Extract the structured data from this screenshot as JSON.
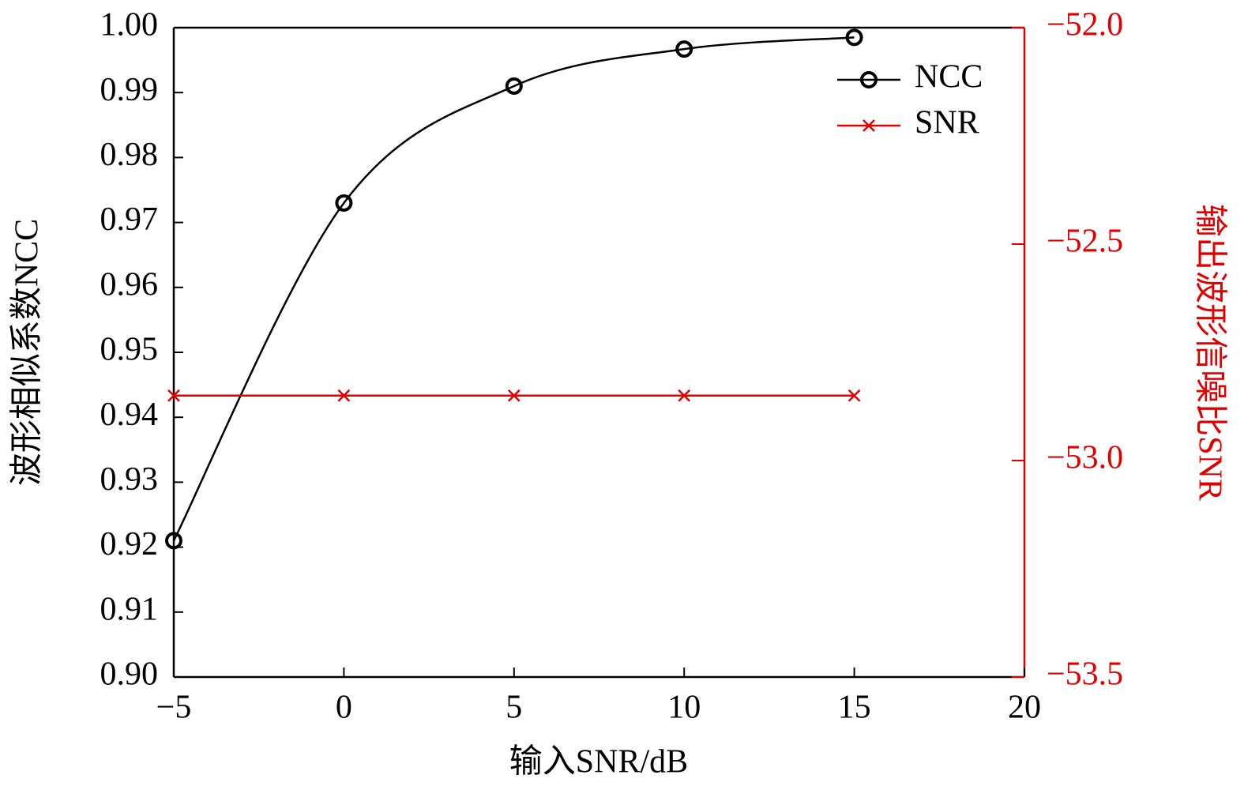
{
  "chart_data": {
    "type": "line",
    "x": [
      -5,
      0,
      5,
      10,
      15
    ],
    "series": [
      {
        "name": "NCC",
        "color": "#000000",
        "marker": "circle",
        "values": [
          0.921,
          0.973,
          0.991,
          0.9967,
          0.9985
        ]
      },
      {
        "name": "SNR",
        "color": "#e00000",
        "marker": "x",
        "axis": "y2",
        "values": [
          -52.85,
          -52.85,
          -52.85,
          -52.85,
          -52.85
        ]
      }
    ],
    "xlabel": "输入SNR/dB",
    "ylabel": "波形相似系数NCC",
    "y2label": "输出波形信噪比SNR",
    "xlim": [
      -5,
      20
    ],
    "xticks": [
      {
        "value": -5,
        "label": "−5"
      },
      0,
      5,
      10,
      15,
      20
    ],
    "ylim": [
      0.9,
      1.0
    ],
    "yticks": [
      {
        "value": 0.9,
        "label": "0.90"
      },
      0.91,
      0.92,
      0.93,
      0.94,
      0.95,
      0.96,
      0.97,
      0.98,
      0.99,
      {
        "value": 1.0,
        "label": "1.00"
      }
    ],
    "y2lim": [
      -53.5,
      -52.0
    ],
    "y2ticks": [
      {
        "value": -53.5,
        "label": "−53.5"
      },
      {
        "value": -53.0,
        "label": "−53.0"
      },
      {
        "value": -52.5,
        "label": "−52.5"
      },
      {
        "value": -52.0,
        "label": "−52.0"
      }
    ],
    "y2color": "#e00000",
    "legend": "upper right"
  }
}
